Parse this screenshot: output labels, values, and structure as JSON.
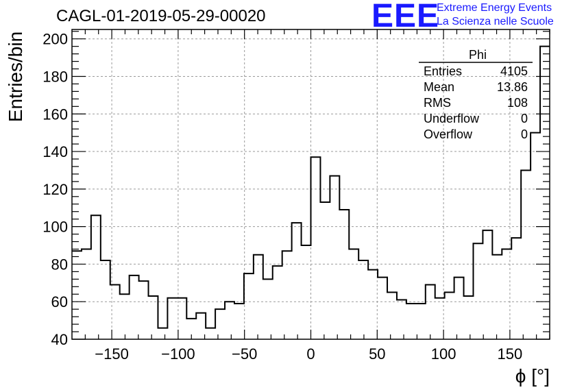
{
  "header": {
    "title": "CAGL-01-2019-05-29-00020",
    "logo_text": "EEE",
    "logo_line1": "Extreme Energy Events",
    "logo_line2": "La Scienza nelle Scuole",
    "logo_color": "#1a1aff"
  },
  "stats_box": {
    "name": "Phi",
    "rows": [
      {
        "label": "Entries",
        "value": "4105"
      },
      {
        "label": "Mean",
        "value": "13.86"
      },
      {
        "label": "RMS",
        "value": "108"
      },
      {
        "label": "Underflow",
        "value": "0"
      },
      {
        "label": "Overflow",
        "value": "0"
      }
    ]
  },
  "chart_data": {
    "type": "histogram",
    "title": "CAGL-01-2019-05-29-00020",
    "xlabel": "ϕ [°]",
    "ylabel": "Entries/bin",
    "xlim": [
      -180,
      180
    ],
    "ylim": [
      40,
      205
    ],
    "x_ticks": [
      -150,
      -100,
      -50,
      0,
      50,
      100,
      150
    ],
    "x_tick_labels": [
      "−150",
      "−100",
      "−50",
      "0",
      "50",
      "100",
      "150"
    ],
    "y_ticks": [
      40,
      60,
      80,
      100,
      120,
      140,
      160,
      180,
      200
    ],
    "y_tick_labels": [
      "40",
      "60",
      "80",
      "100",
      "120",
      "140",
      "160",
      "180",
      "200"
    ],
    "grid": true,
    "bin_width": 7.2,
    "bin_low_edges": [
      -180,
      -172.8,
      -165.6,
      -158.4,
      -151.2,
      -144,
      -136.8,
      -129.6,
      -122.4,
      -115.2,
      -108,
      -100.8,
      -93.6,
      -86.4,
      -79.2,
      -72,
      -64.8,
      -57.6,
      -50.4,
      -43.2,
      -36,
      -28.8,
      -21.6,
      -14.4,
      -7.2,
      0,
      7.2,
      14.4,
      21.6,
      28.8,
      36,
      43.2,
      50.4,
      57.6,
      64.8,
      72,
      79.2,
      86.4,
      93.6,
      100.8,
      108,
      115.2,
      122.4,
      129.6,
      136.8,
      144,
      151.2,
      158.4,
      165.6,
      172.8
    ],
    "values": [
      87,
      88,
      106,
      82,
      69,
      64,
      74,
      71,
      63,
      46,
      62,
      62,
      51,
      54,
      46,
      56,
      60,
      59,
      75,
      85,
      72,
      79,
      87,
      102,
      90,
      137,
      113,
      127,
      109,
      88,
      82,
      77,
      73,
      65,
      61,
      59,
      59,
      69,
      62,
      65,
      73,
      63,
      91,
      98,
      85,
      88,
      94,
      130,
      150,
      196
    ]
  }
}
